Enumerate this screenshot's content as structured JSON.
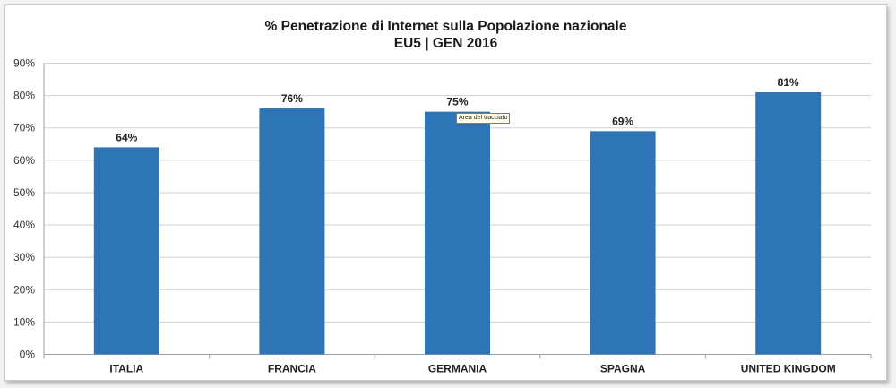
{
  "chart_data": {
    "type": "bar",
    "title": "% Penetrazione  di Internet sulla Popolazione nazionale",
    "subtitle": "EU5 | GEN 2016",
    "categories": [
      "ITALIA",
      "FRANCIA",
      "GERMANIA",
      "SPAGNA",
      "UNITED KINGDOM"
    ],
    "values": [
      64,
      76,
      75,
      69,
      81
    ],
    "value_labels": [
      "64%",
      "76%",
      "75%",
      "69%",
      "81%"
    ],
    "ylim": [
      0,
      90
    ],
    "yticks": [
      0,
      10,
      20,
      30,
      40,
      50,
      60,
      70,
      80,
      90
    ],
    "ytick_labels": [
      "0%",
      "10%",
      "20%",
      "30%",
      "40%",
      "50%",
      "60%",
      "70%",
      "80%",
      "90%"
    ],
    "xlabel": "",
    "ylabel": "",
    "grid": true,
    "bar_color": "#2e75b6",
    "grid_color": "#c8d0d8"
  },
  "tooltip": "Area del tracciato"
}
